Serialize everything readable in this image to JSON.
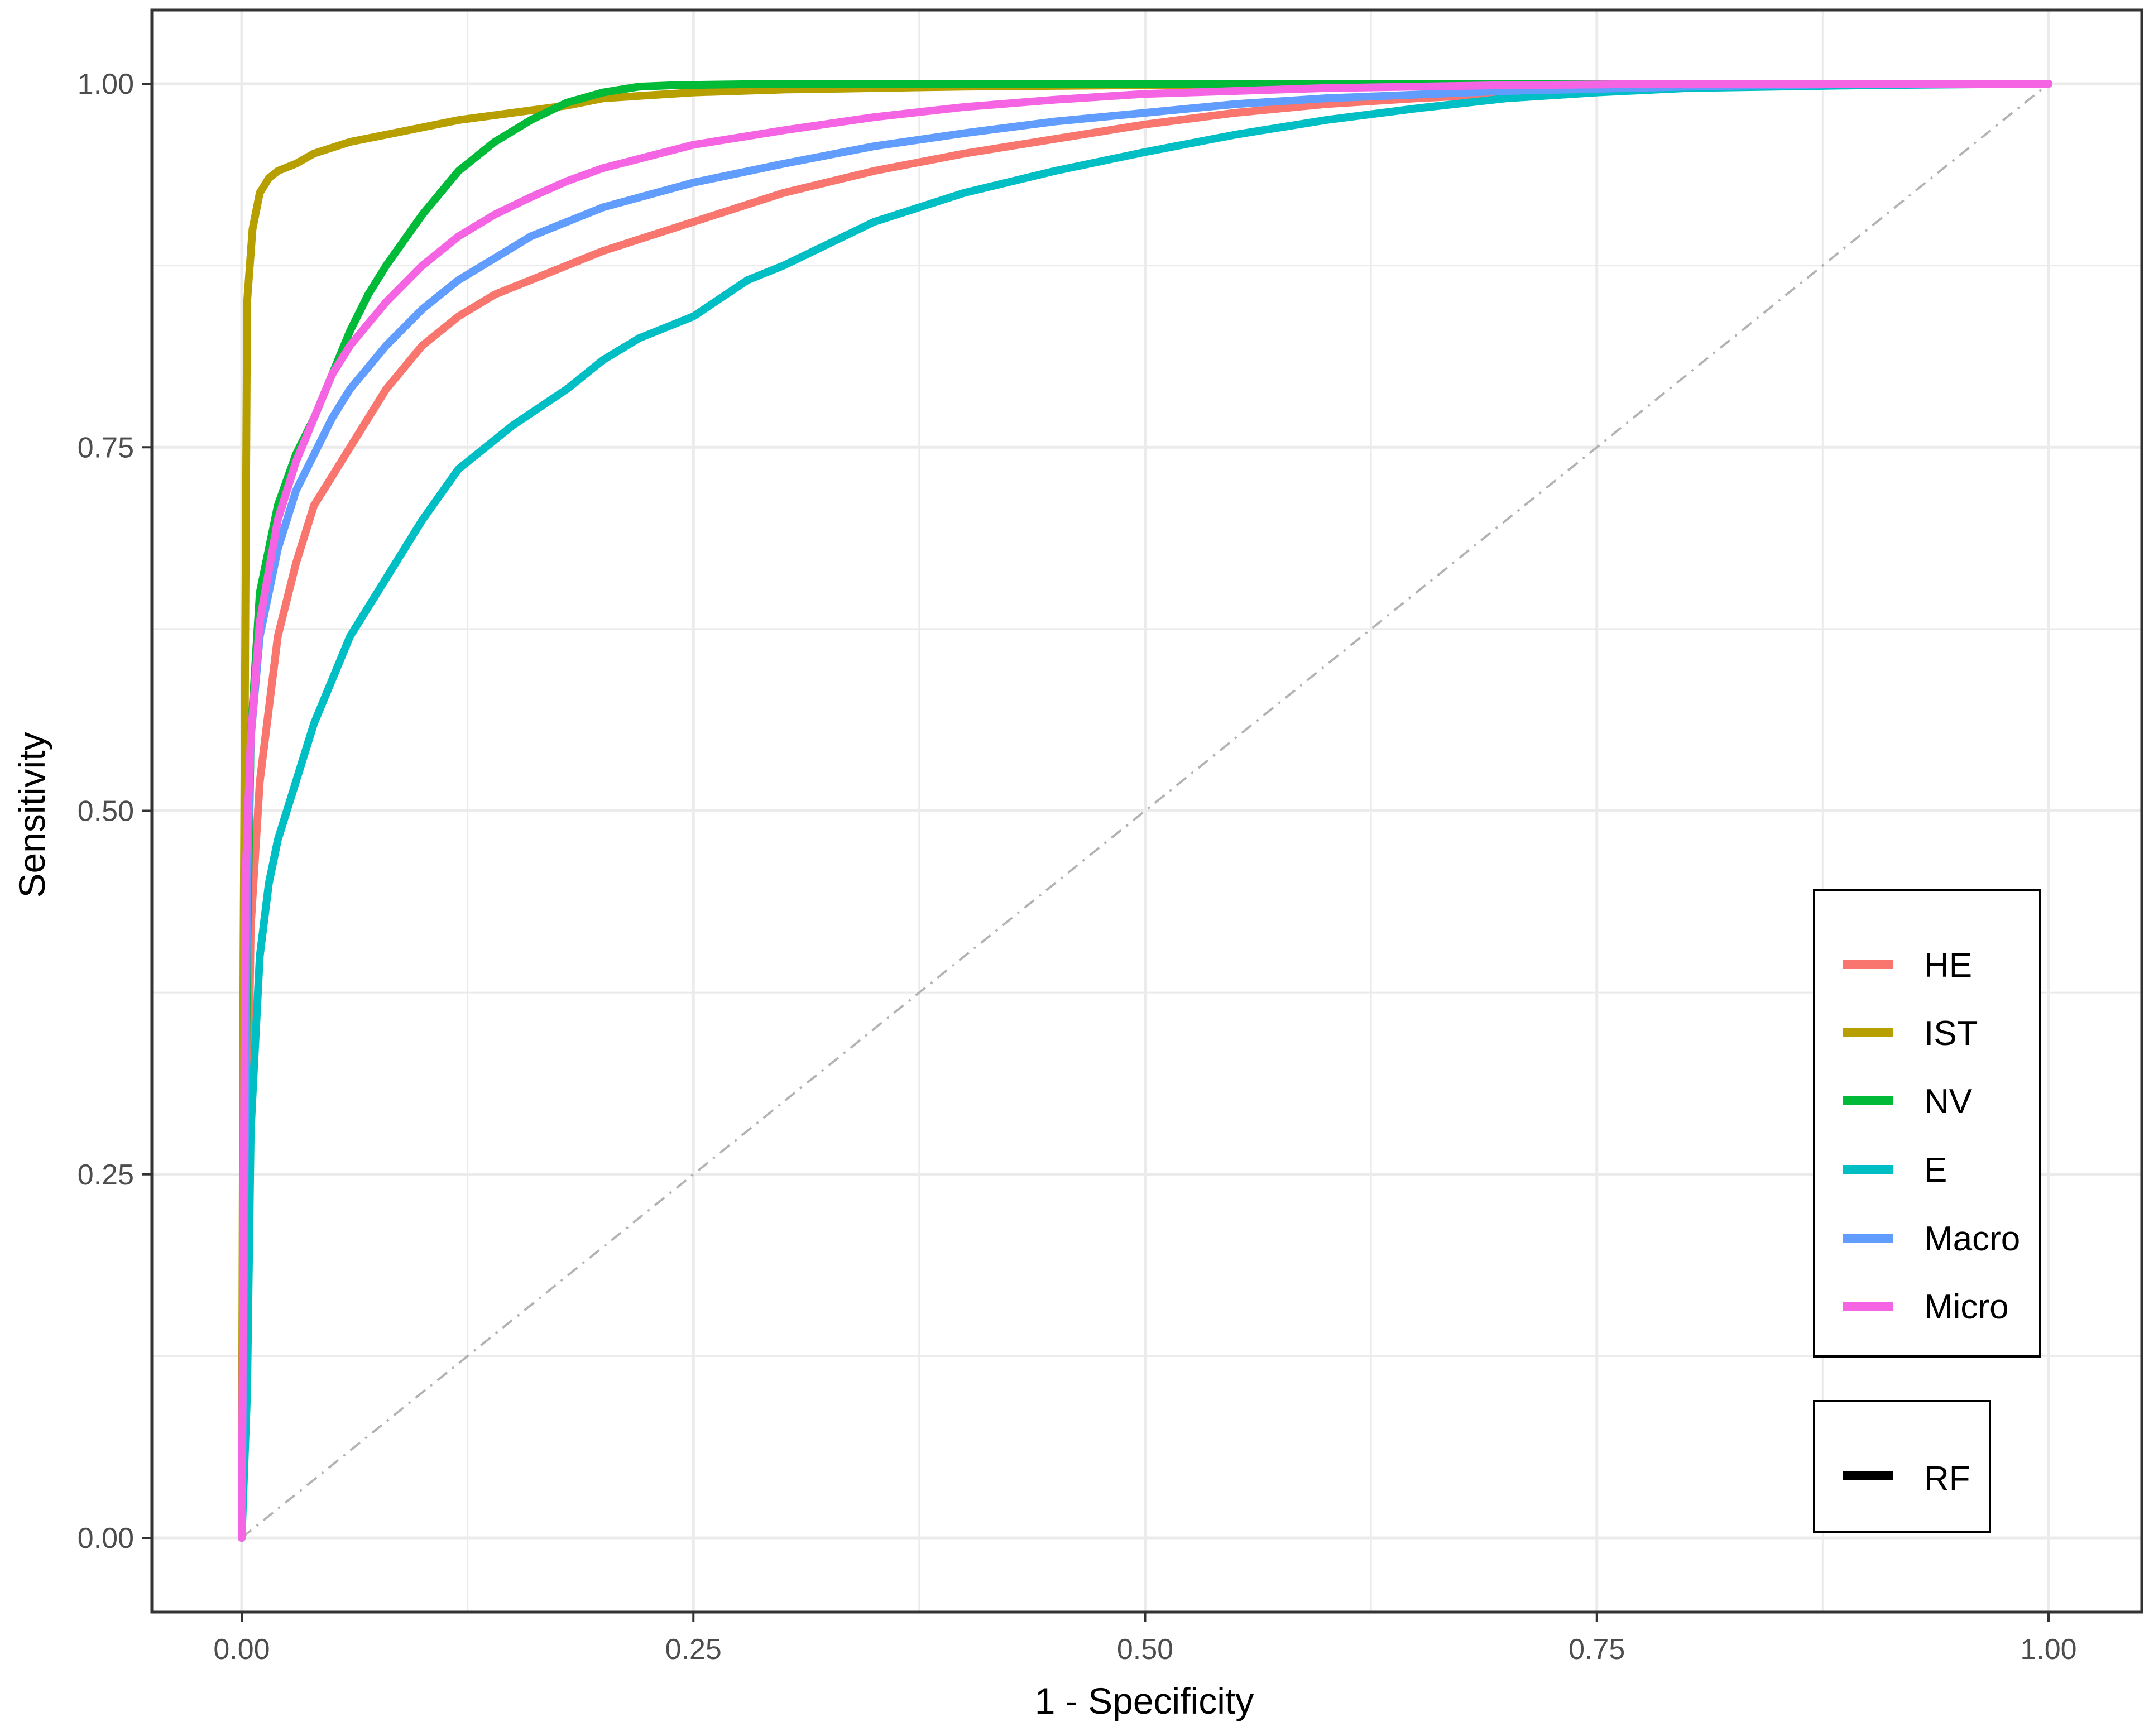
{
  "chart_data": {
    "type": "line",
    "xlabel": "1 - Specificity",
    "ylabel": "Sensitivity",
    "xlim": [
      0,
      1
    ],
    "ylim": [
      0,
      1
    ],
    "x_ticks": [
      "0.00",
      "0.25",
      "0.50",
      "0.75",
      "1.00"
    ],
    "y_ticks": [
      "0.00",
      "0.25",
      "0.50",
      "0.75",
      "1.00"
    ],
    "grid": true,
    "diagonal_reference": true,
    "legend_position": "bottom-right",
    "series": [
      {
        "name": "HE",
        "color": "#F8766D",
        "x": [
          0,
          0.005,
          0.01,
          0.02,
          0.03,
          0.04,
          0.05,
          0.06,
          0.08,
          0.1,
          0.12,
          0.14,
          0.16,
          0.18,
          0.2,
          0.22,
          0.25,
          0.3,
          0.35,
          0.4,
          0.45,
          0.5,
          0.55,
          0.6,
          0.65,
          0.7,
          0.75,
          0.8,
          0.85,
          0.9,
          1.0
        ],
        "y": [
          0,
          0.42,
          0.52,
          0.62,
          0.67,
          0.71,
          0.73,
          0.75,
          0.79,
          0.82,
          0.84,
          0.855,
          0.865,
          0.875,
          0.885,
          0.893,
          0.905,
          0.925,
          0.94,
          0.952,
          0.962,
          0.972,
          0.98,
          0.986,
          0.99,
          0.993,
          0.995,
          0.997,
          0.999,
          1.0,
          1.0
        ]
      },
      {
        "name": "IST",
        "color": "#B79F00",
        "x": [
          0,
          0.001,
          0.003,
          0.006,
          0.01,
          0.015,
          0.02,
          0.03,
          0.04,
          0.06,
          0.08,
          0.1,
          0.12,
          0.15,
          0.18,
          0.2,
          0.25,
          0.3,
          0.4,
          0.5,
          0.6,
          0.7,
          1.0
        ],
        "y": [
          0,
          0.4,
          0.85,
          0.9,
          0.925,
          0.935,
          0.94,
          0.945,
          0.952,
          0.96,
          0.965,
          0.97,
          0.975,
          0.98,
          0.985,
          0.99,
          0.994,
          0.996,
          0.998,
          0.999,
          1.0,
          1.0,
          1.0
        ]
      },
      {
        "name": "NV",
        "color": "#00BA38",
        "x": [
          0,
          0.003,
          0.005,
          0.01,
          0.02,
          0.03,
          0.04,
          0.05,
          0.06,
          0.07,
          0.08,
          0.1,
          0.12,
          0.14,
          0.16,
          0.18,
          0.2,
          0.22,
          0.24,
          0.3,
          0.4,
          0.5,
          0.66,
          1.0
        ],
        "y": [
          0,
          0.4,
          0.55,
          0.65,
          0.71,
          0.745,
          0.77,
          0.8,
          0.83,
          0.855,
          0.875,
          0.91,
          0.94,
          0.96,
          0.975,
          0.987,
          0.994,
          0.998,
          0.999,
          1.0,
          1.0,
          1.0,
          1.0,
          1.0
        ]
      },
      {
        "name": "E",
        "color": "#00BFC4",
        "x": [
          0,
          0.003,
          0.005,
          0.01,
          0.015,
          0.02,
          0.03,
          0.04,
          0.05,
          0.06,
          0.08,
          0.1,
          0.12,
          0.15,
          0.18,
          0.2,
          0.22,
          0.25,
          0.28,
          0.3,
          0.35,
          0.4,
          0.45,
          0.5,
          0.55,
          0.6,
          0.65,
          0.7,
          0.75,
          0.8,
          0.9,
          1.0
        ],
        "y": [
          0,
          0.1,
          0.28,
          0.4,
          0.45,
          0.48,
          0.52,
          0.56,
          0.59,
          0.62,
          0.66,
          0.7,
          0.735,
          0.765,
          0.79,
          0.81,
          0.825,
          0.84,
          0.865,
          0.875,
          0.905,
          0.925,
          0.94,
          0.953,
          0.965,
          0.975,
          0.983,
          0.99,
          0.994,
          0.997,
          0.999,
          1.0
        ]
      },
      {
        "name": "Macro",
        "color": "#619CFF",
        "x": [
          0,
          0.003,
          0.005,
          0.01,
          0.02,
          0.03,
          0.04,
          0.05,
          0.06,
          0.08,
          0.1,
          0.12,
          0.14,
          0.16,
          0.18,
          0.2,
          0.25,
          0.3,
          0.35,
          0.4,
          0.45,
          0.5,
          0.55,
          0.6,
          0.7,
          0.8,
          0.9,
          1.0
        ],
        "y": [
          0,
          0.45,
          0.55,
          0.62,
          0.68,
          0.72,
          0.745,
          0.77,
          0.79,
          0.82,
          0.845,
          0.865,
          0.88,
          0.895,
          0.905,
          0.915,
          0.932,
          0.945,
          0.957,
          0.966,
          0.974,
          0.98,
          0.986,
          0.99,
          0.995,
          0.998,
          1.0,
          1.0
        ]
      },
      {
        "name": "Micro",
        "color": "#F564E3",
        "x": [
          0,
          0.002,
          0.005,
          0.01,
          0.02,
          0.03,
          0.04,
          0.05,
          0.06,
          0.08,
          0.1,
          0.12,
          0.14,
          0.16,
          0.18,
          0.2,
          0.25,
          0.3,
          0.35,
          0.4,
          0.45,
          0.5,
          0.6,
          0.7,
          0.8,
          0.9,
          1.0
        ],
        "y": [
          0,
          0.45,
          0.55,
          0.63,
          0.7,
          0.74,
          0.77,
          0.8,
          0.82,
          0.85,
          0.875,
          0.895,
          0.91,
          0.922,
          0.933,
          0.942,
          0.958,
          0.968,
          0.977,
          0.984,
          0.989,
          0.993,
          0.997,
          0.999,
          1.0,
          1.0,
          1.0
        ]
      }
    ],
    "legend_linetype": {
      "name": "RF",
      "color": "#000000"
    }
  }
}
